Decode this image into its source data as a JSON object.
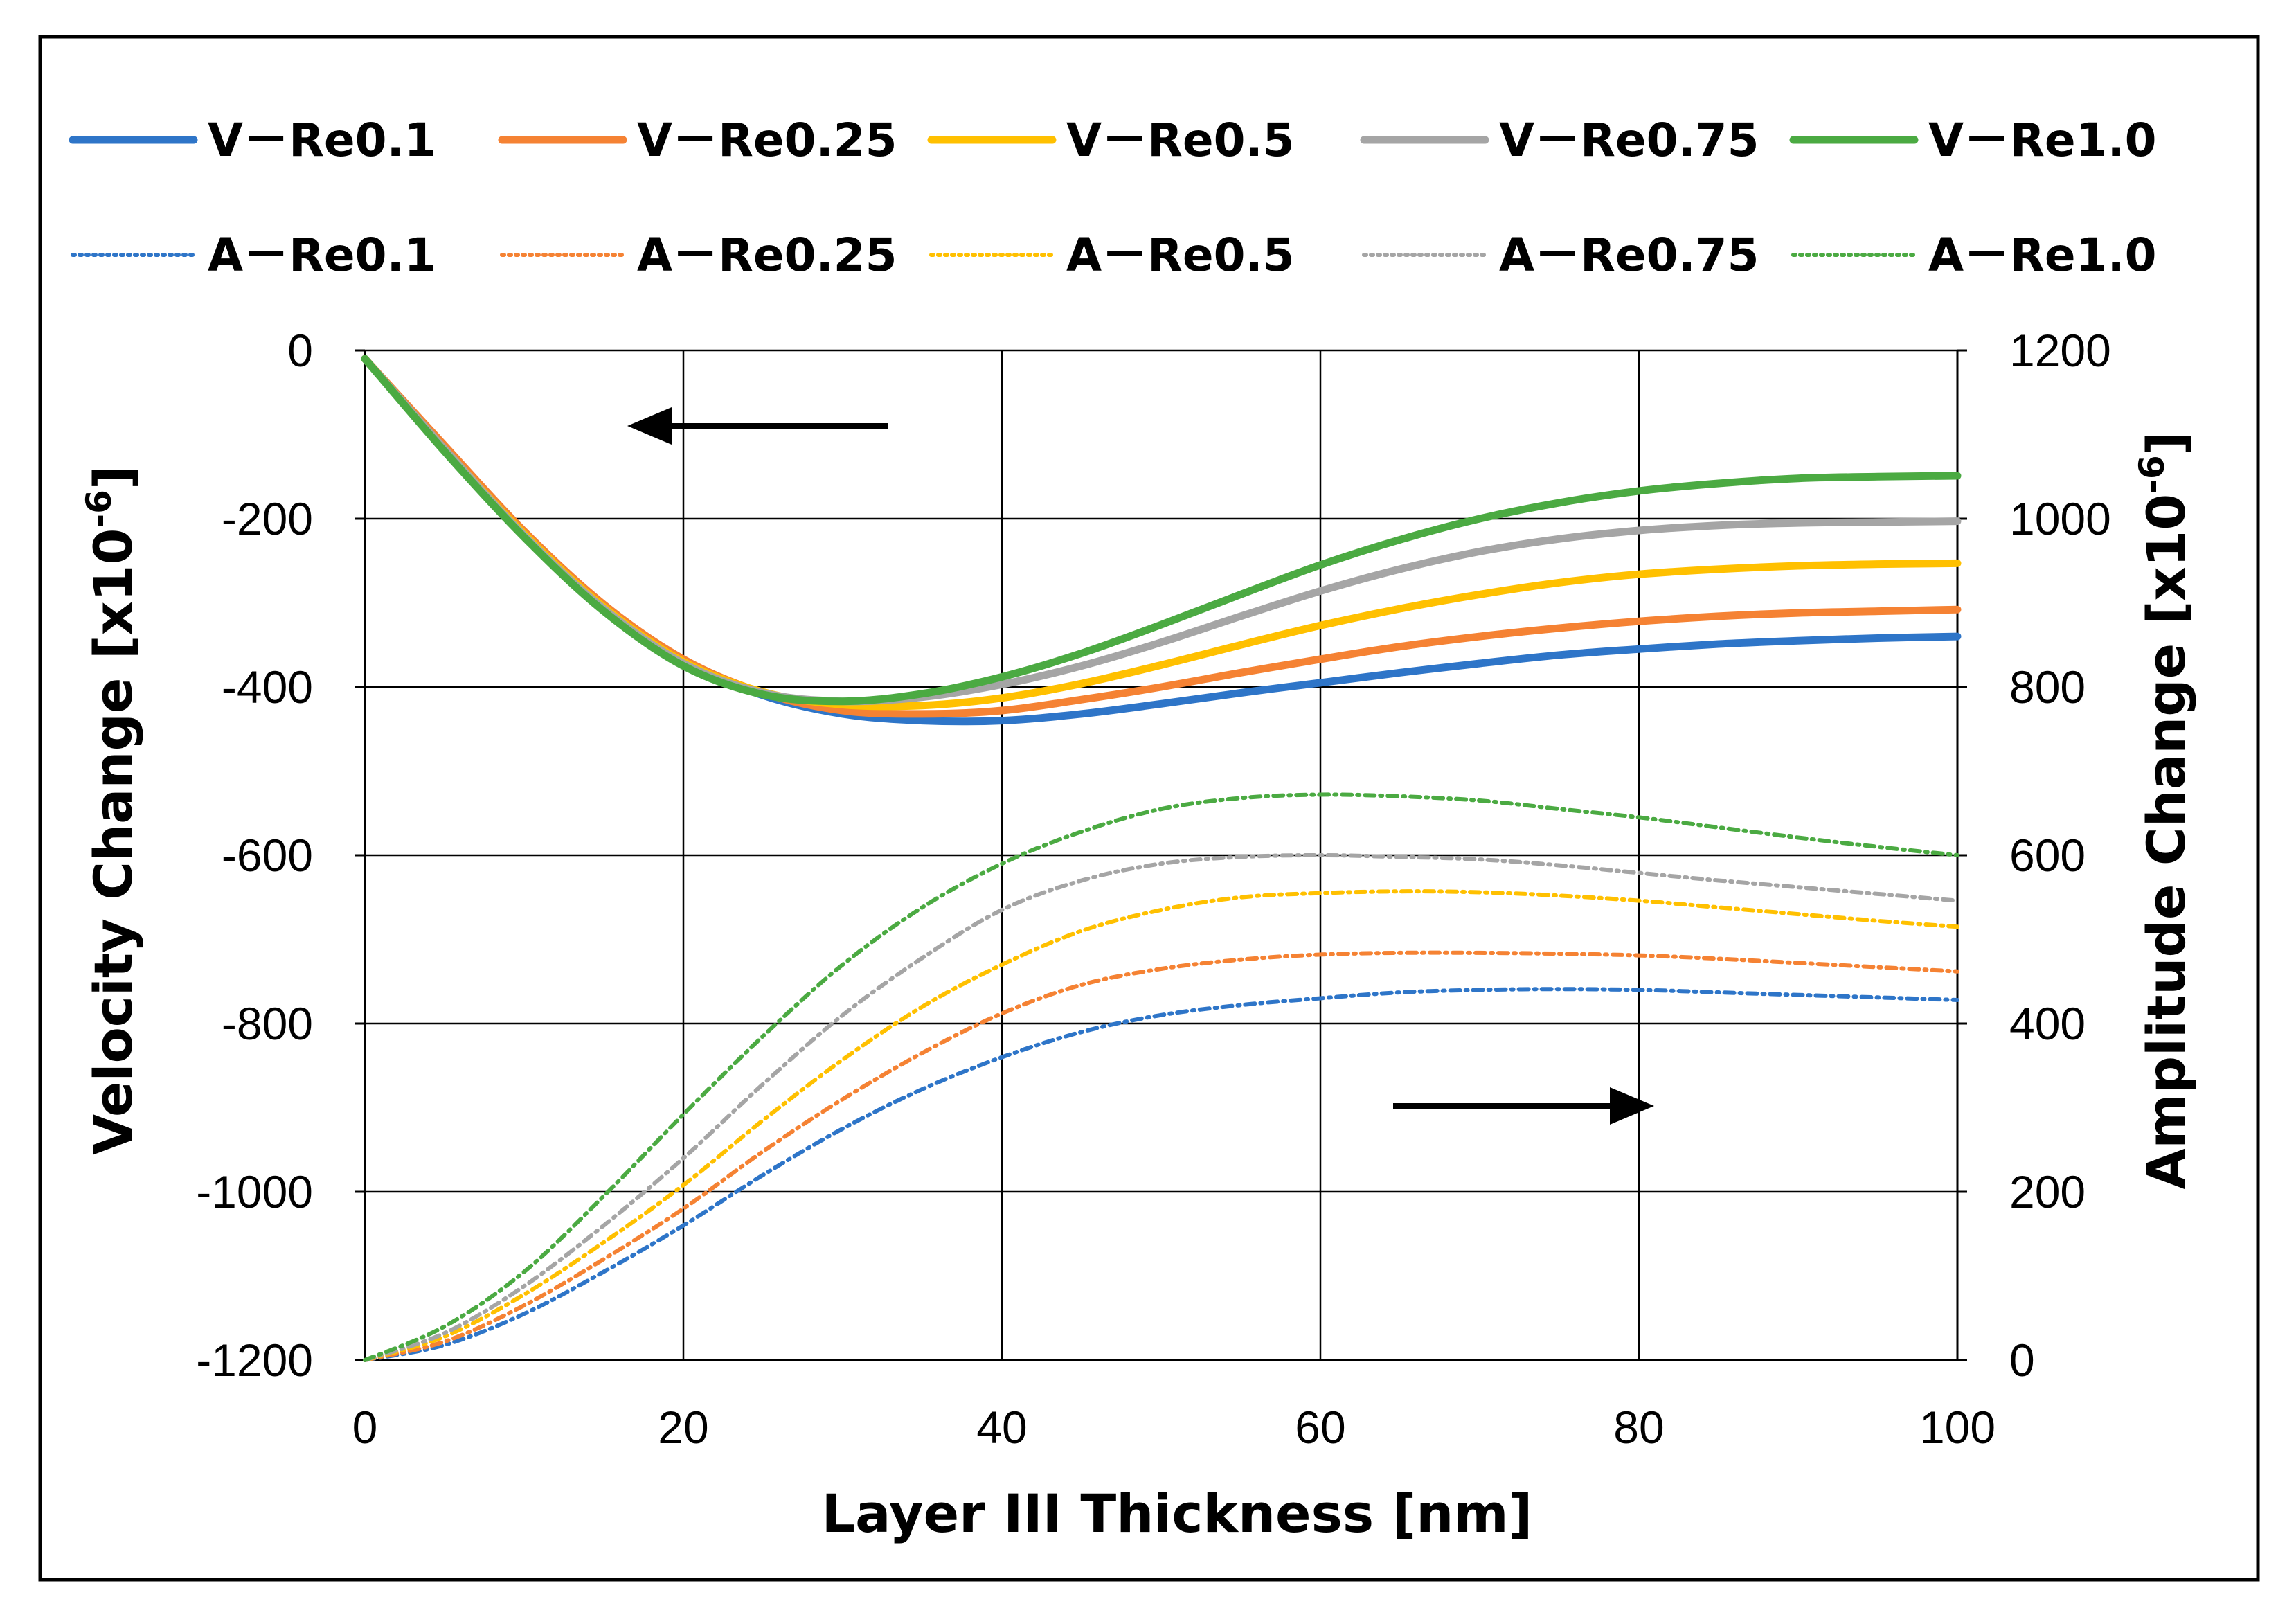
{
  "chart_data": {
    "type": "line",
    "title": "",
    "xlabel": "Layer III Thickness [nm]",
    "ylabel_left": "Velocity Change [x10",
    "ylabel_right": "Amplitude Change [x10",
    "ylabel_exp": "-6",
    "ylabel_close": "]",
    "xlim": [
      0,
      100
    ],
    "ylim_left": [
      -1200,
      0
    ],
    "ylim_right": [
      0,
      1200
    ],
    "grid": true,
    "legend_position": "top",
    "x_ticks": [
      "0",
      "20",
      "40",
      "60",
      "80",
      "100"
    ],
    "y_left_ticks": [
      "0",
      "-200",
      "-400",
      "-600",
      "-800",
      "-1000",
      "-1200"
    ],
    "y_right_ticks": [
      "1200",
      "1000",
      "800",
      "600",
      "400",
      "200",
      "0"
    ],
    "x": [
      0,
      5,
      10,
      15,
      20,
      25,
      30,
      35,
      40,
      45,
      50,
      55,
      60,
      65,
      70,
      75,
      80,
      85,
      90,
      95,
      100
    ],
    "series": [
      {
        "name": "V－Re0.1",
        "axis": "left",
        "style": "solid",
        "color": "#2E75C8",
        "values": [
          -10,
          -115,
          -218,
          -305,
          -370,
          -410,
          -432,
          -440,
          -440,
          -432,
          -420,
          -407,
          -395,
          -383,
          -372,
          -362,
          -355,
          -349,
          -345,
          -342,
          -340
        ]
      },
      {
        "name": "V－Re0.25",
        "axis": "left",
        "style": "solid",
        "color": "#F58233",
        "values": [
          -10,
          -113,
          -215,
          -302,
          -367,
          -407,
          -428,
          -432,
          -428,
          -415,
          -400,
          -383,
          -367,
          -352,
          -340,
          -330,
          -322,
          -316,
          -312,
          -310,
          -308
        ]
      },
      {
        "name": "V－Re0.5",
        "axis": "left",
        "style": "solid",
        "color": "#FFC000",
        "values": [
          -10,
          -117,
          -218,
          -305,
          -370,
          -406,
          -421,
          -422,
          -413,
          -396,
          -374,
          -350,
          -327,
          -307,
          -290,
          -276,
          -266,
          -260,
          -256,
          -254,
          -253
        ]
      },
      {
        "name": "V－Re0.75",
        "axis": "left",
        "style": "solid",
        "color": "#A5A5A5",
        "values": [
          -10,
          -117,
          -220,
          -307,
          -372,
          -407,
          -417,
          -412,
          -397,
          -375,
          -347,
          -316,
          -286,
          -260,
          -239,
          -224,
          -214,
          -208,
          -205,
          -204,
          -203
        ]
      },
      {
        "name": "V－Re1.0",
        "axis": "left",
        "style": "solid",
        "color": "#4BAA42",
        "values": [
          -10,
          -120,
          -222,
          -310,
          -375,
          -409,
          -417,
          -408,
          -388,
          -360,
          -326,
          -290,
          -255,
          -225,
          -200,
          -181,
          -167,
          -158,
          -152,
          -150,
          -149
        ]
      },
      {
        "name": "A－Re0.1",
        "axis": "right",
        "style": "dotted",
        "color": "#2E75C8",
        "values": [
          0,
          18,
          55,
          105,
          160,
          220,
          275,
          322,
          360,
          390,
          410,
          422,
          430,
          437,
          440,
          441,
          440,
          437,
          434,
          431,
          428
        ]
      },
      {
        "name": "A－Re0.25",
        "axis": "right",
        "style": "dotted",
        "color": "#F58233",
        "values": [
          0,
          22,
          65,
          120,
          180,
          248,
          310,
          365,
          412,
          446,
          465,
          476,
          482,
          484,
          484,
          483,
          481,
          477,
          472,
          467,
          462
        ]
      },
      {
        "name": "A－Re0.5",
        "axis": "right",
        "style": "dotted",
        "color": "#FFC000",
        "values": [
          0,
          28,
          78,
          140,
          208,
          285,
          357,
          420,
          470,
          510,
          535,
          550,
          555,
          557,
          556,
          552,
          546,
          538,
          530,
          522,
          515
        ]
      },
      {
        "name": "A－Re0.75",
        "axis": "right",
        "style": "dotted",
        "color": "#A5A5A5",
        "values": [
          0,
          32,
          88,
          160,
          240,
          328,
          410,
          478,
          535,
          570,
          590,
          598,
          600,
          598,
          595,
          588,
          579,
          570,
          562,
          554,
          546
        ]
      },
      {
        "name": "A－Re1.0",
        "axis": "right",
        "style": "dotted",
        "color": "#4BAA42",
        "values": [
          0,
          40,
          105,
          195,
          292,
          385,
          470,
          538,
          590,
          628,
          655,
          668,
          672,
          670,
          665,
          655,
          645,
          633,
          621,
          610,
          600
        ]
      }
    ]
  }
}
